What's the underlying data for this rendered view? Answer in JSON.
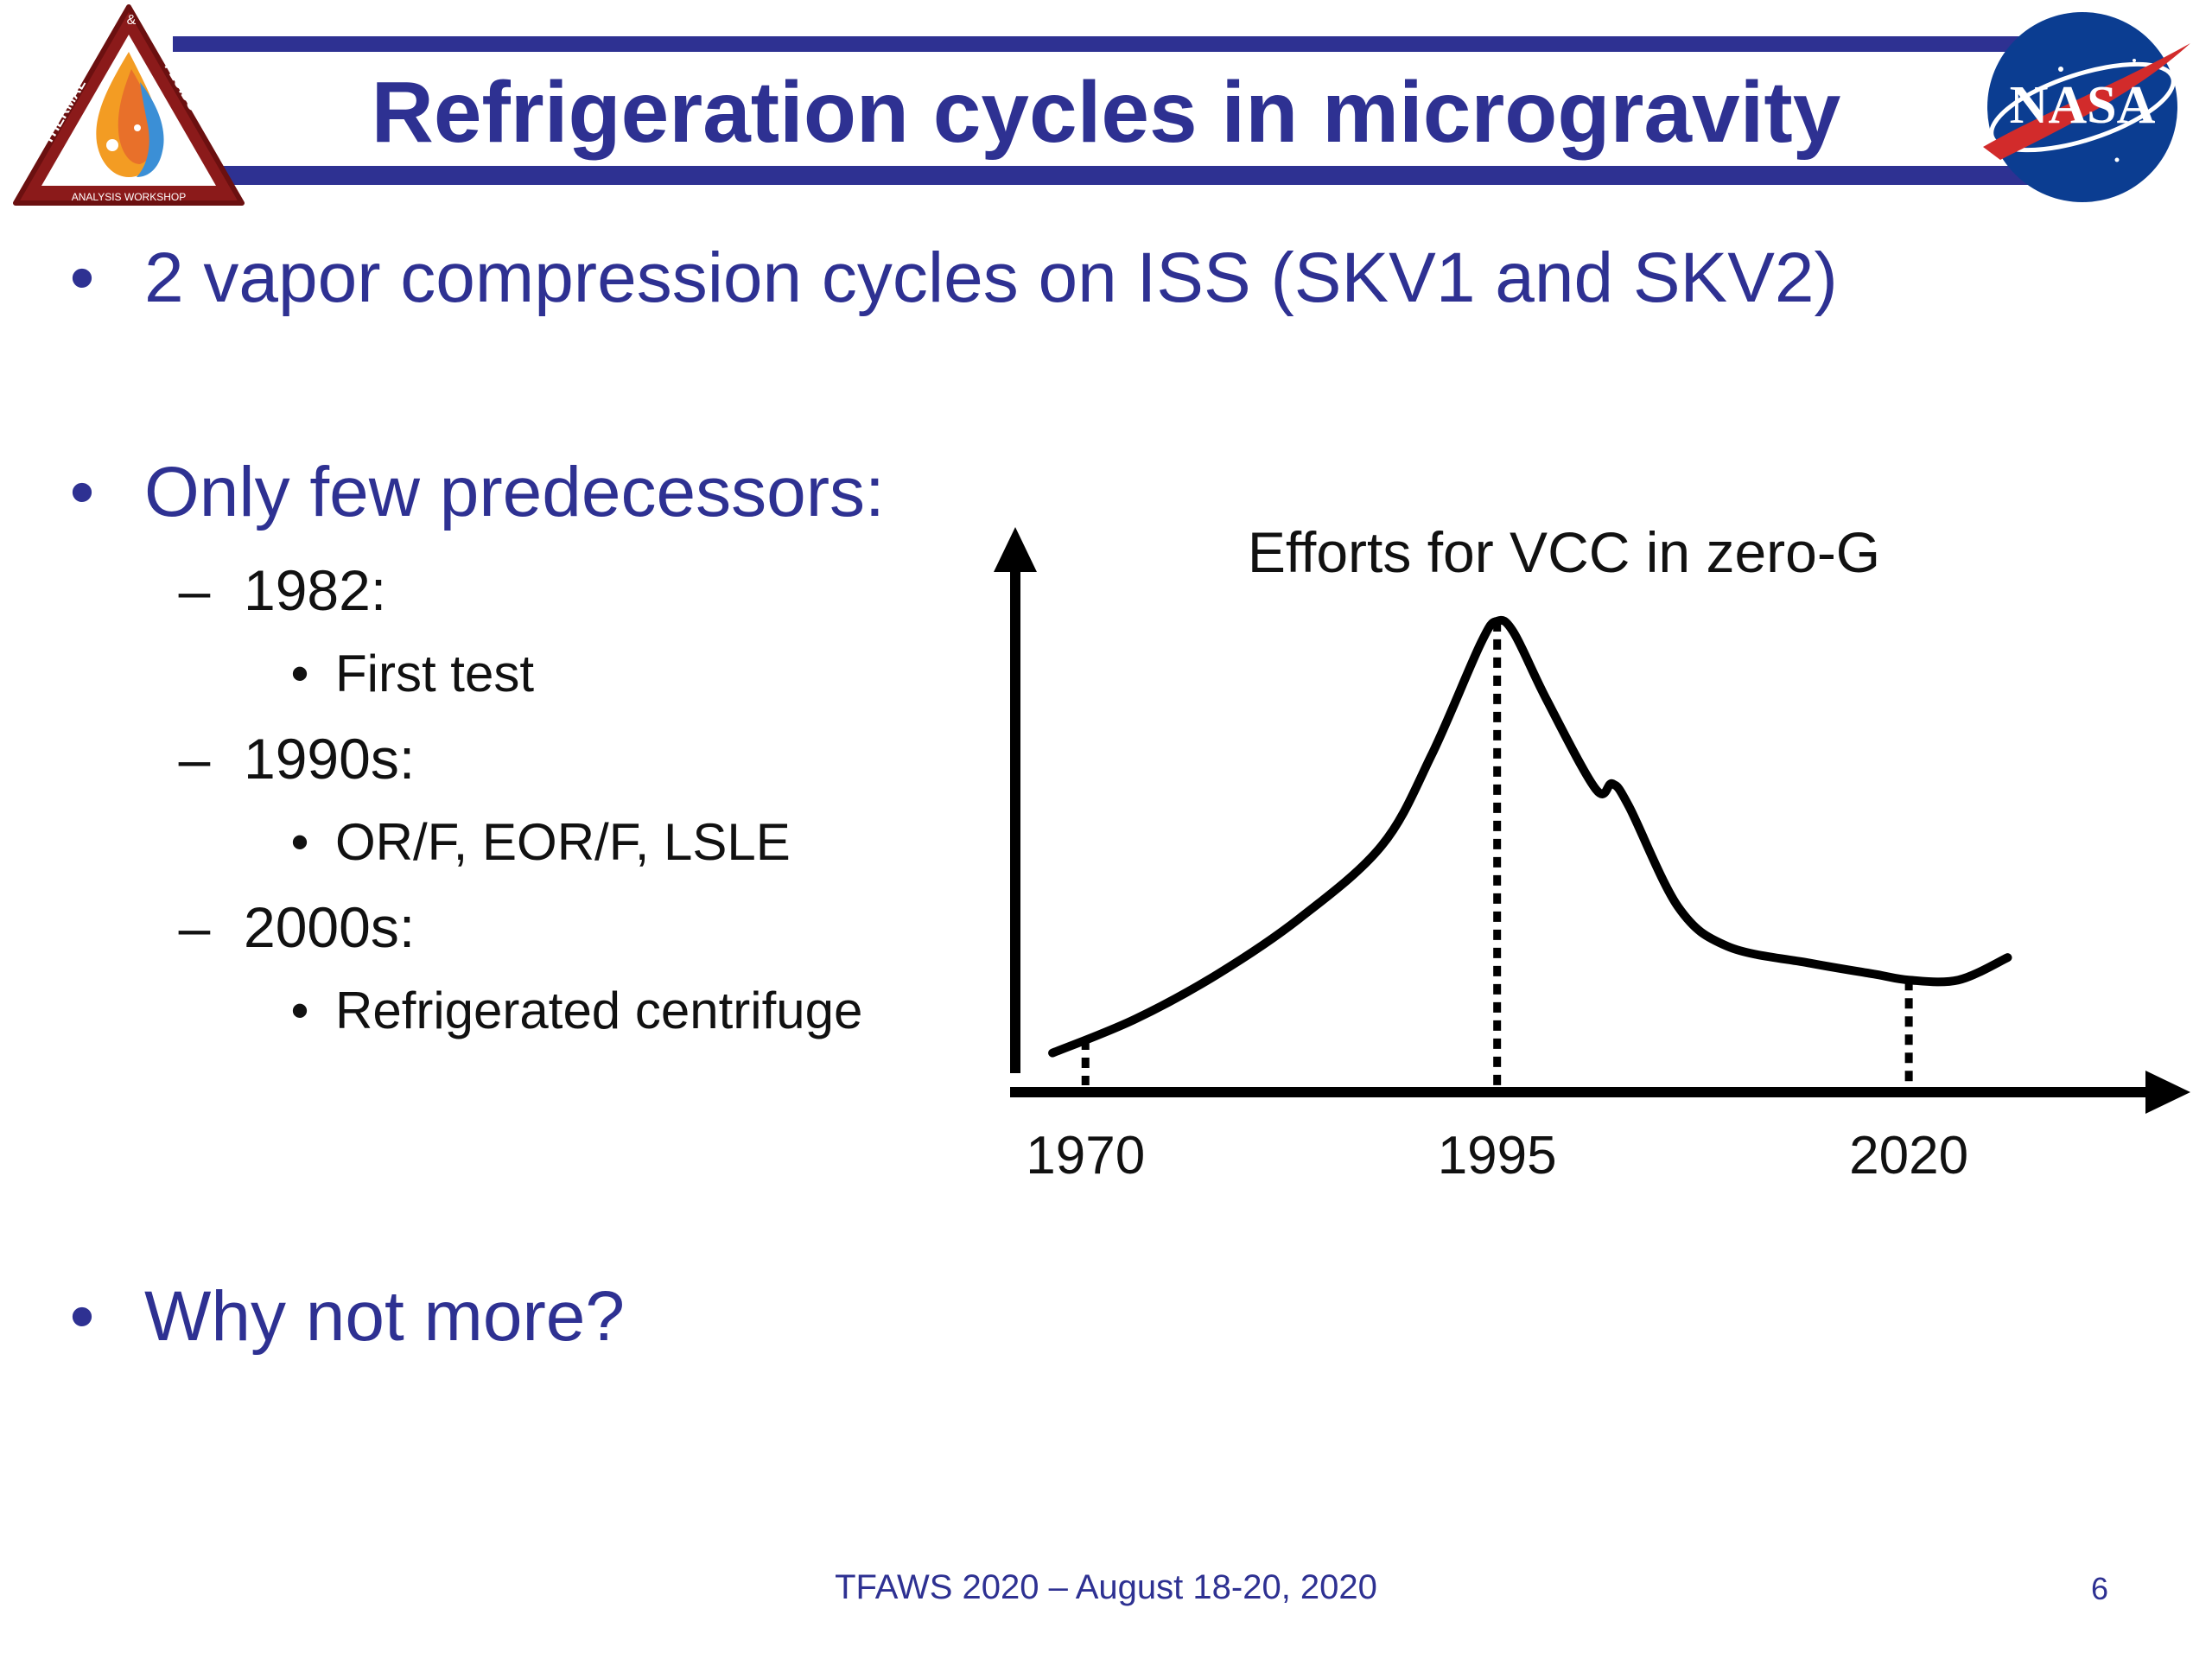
{
  "slide": {
    "title": "Refrigeration cycles in microgravity",
    "footer": "TFAWS 2020 – August 18-20, 2020",
    "page_number": "6"
  },
  "logos": {
    "left": {
      "top_text": "&",
      "left_text": "THERMAL",
      "right_text": "FLUIDS",
      "bottom_text": "ANALYSIS WORKSHOP"
    },
    "right": {
      "text": "NASA"
    }
  },
  "bullets": {
    "b1": "2 vapor compression cycles on ISS (SKV1 and SKV2)",
    "b2": "Only few predecessors:",
    "s1": "1982:",
    "s1a": "First test",
    "s2": "1990s:",
    "s2a": "OR/F, EOR/F, LSLE",
    "s3": "2000s:",
    "s3a": "Refrigerated centrifuge",
    "b3": "Why not more?",
    "mark1": "•",
    "mark2": "–",
    "mark3": "•"
  },
  "chart_data": {
    "type": "line",
    "title": "Efforts for VCC in zero-G",
    "xlabel": "",
    "ylabel": "",
    "x_ticks": [
      "1970",
      "1995",
      "2020"
    ],
    "xlim": [
      1966,
      2035
    ],
    "ylim": [
      0,
      100
    ],
    "series": [
      {
        "name": "Efforts for VCC in zero-G",
        "x": [
          1968,
          1973,
          1978,
          1983,
          1988,
          1991,
          1994,
          1995,
          1996,
          1998,
          2001,
          2002,
          2003,
          2006,
          2009,
          2014,
          2018,
          2020,
          2023,
          2026
        ],
        "y": [
          7,
          13,
          21,
          31,
          44,
          60,
          80,
          84,
          82,
          70,
          54,
          55,
          51,
          33,
          26,
          23,
          21,
          20,
          20,
          24
        ]
      }
    ],
    "dotted_markers": [
      1970,
      1995,
      2020
    ]
  }
}
